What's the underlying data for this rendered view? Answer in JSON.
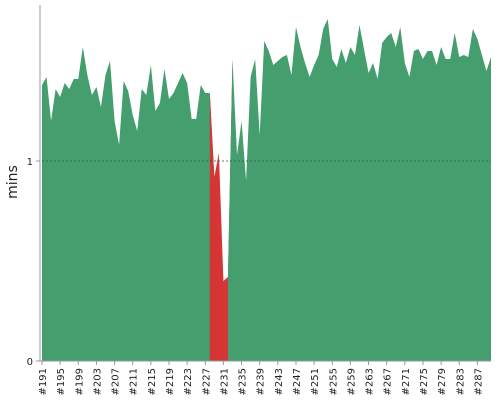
{
  "chart_data": {
    "type": "area",
    "title": "",
    "xlabel": "",
    "ylabel": "mins",
    "ylim": [
      0,
      1.78
    ],
    "yticks": [
      0,
      1
    ],
    "reference_line": 1,
    "x": [
      "#191",
      "#192",
      "#193",
      "#194",
      "#195",
      "#196",
      "#197",
      "#198",
      "#199",
      "#200",
      "#201",
      "#202",
      "#203",
      "#204",
      "#205",
      "#206",
      "#207",
      "#208",
      "#209",
      "#210",
      "#211",
      "#212",
      "#213",
      "#214",
      "#215",
      "#216",
      "#217",
      "#218",
      "#219",
      "#220",
      "#221",
      "#222",
      "#223",
      "#224",
      "#225",
      "#226",
      "#227",
      "#228",
      "#229",
      "#230",
      "#231",
      "#232",
      "#233",
      "#234",
      "#235",
      "#236",
      "#237",
      "#238",
      "#239",
      "#240",
      "#241",
      "#242",
      "#243",
      "#244",
      "#245",
      "#246",
      "#247",
      "#248",
      "#249",
      "#250",
      "#251",
      "#252",
      "#253",
      "#254",
      "#255",
      "#256",
      "#257",
      "#258",
      "#259",
      "#260",
      "#261",
      "#262",
      "#263",
      "#264",
      "#265",
      "#266",
      "#267",
      "#268",
      "#269",
      "#270",
      "#271",
      "#272",
      "#273",
      "#274",
      "#275",
      "#276",
      "#277",
      "#278",
      "#279",
      "#280",
      "#281",
      "#282",
      "#283",
      "#284",
      "#285",
      "#286",
      "#287",
      "#288",
      "#289",
      "#290"
    ],
    "xtick_labels": [
      "#191",
      "#195",
      "#199",
      "#203",
      "#207",
      "#211",
      "#215",
      "#219",
      "#223",
      "#227",
      "#231",
      "#235",
      "#239",
      "#243",
      "#247",
      "#251",
      "#255",
      "#259",
      "#263",
      "#267",
      "#271",
      "#275",
      "#279",
      "#283",
      "#287"
    ],
    "values": [
      1.38,
      1.42,
      1.2,
      1.36,
      1.32,
      1.39,
      1.36,
      1.41,
      1.41,
      1.57,
      1.43,
      1.33,
      1.37,
      1.27,
      1.43,
      1.5,
      1.2,
      1.08,
      1.4,
      1.35,
      1.23,
      1.15,
      1.36,
      1.33,
      1.48,
      1.25,
      1.29,
      1.46,
      1.31,
      1.34,
      1.39,
      1.44,
      1.39,
      1.21,
      1.21,
      1.38,
      1.34,
      1.34,
      0.92,
      1.04,
      0.4,
      0.42,
      1.51,
      1.03,
      1.2,
      0.9,
      1.42,
      1.51,
      1.13,
      1.6,
      1.55,
      1.48,
      1.5,
      1.52,
      1.53,
      1.43,
      1.67,
      1.57,
      1.49,
      1.42,
      1.48,
      1.53,
      1.66,
      1.71,
      1.51,
      1.47,
      1.56,
      1.49,
      1.57,
      1.53,
      1.68,
      1.56,
      1.44,
      1.49,
      1.41,
      1.59,
      1.62,
      1.64,
      1.57,
      1.67,
      1.49,
      1.42,
      1.55,
      1.56,
      1.51,
      1.55,
      1.55,
      1.48,
      1.57,
      1.51,
      1.51,
      1.64,
      1.52,
      1.53,
      1.52,
      1.66,
      1.61,
      1.53,
      1.45,
      1.52
    ],
    "series": [
      {
        "color": "#449e6d",
        "range": [
          "#191",
          "#228"
        ]
      },
      {
        "color": "#d63535",
        "range": [
          "#229",
          "#232"
        ]
      },
      {
        "color": "#449e6d",
        "range": [
          "#233",
          "#290"
        ]
      }
    ],
    "grid": false
  }
}
